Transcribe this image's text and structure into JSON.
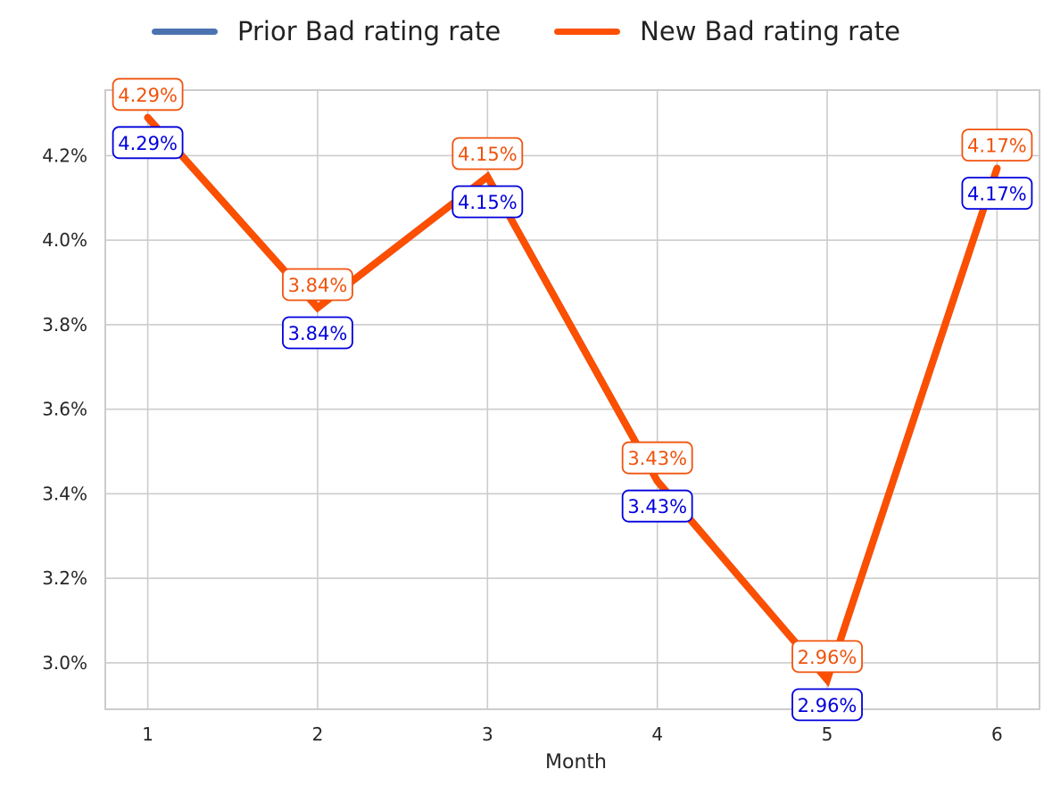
{
  "chart_data": {
    "type": "line",
    "xlabel": "Month",
    "ylabel": "",
    "x": [
      1,
      2,
      3,
      4,
      5,
      6
    ],
    "ylim": [
      2.89,
      4.355
    ],
    "xlim": [
      0.75,
      6.25
    ],
    "yticks": [
      3.0,
      3.2,
      3.4,
      3.6,
      3.8,
      4.0,
      4.2
    ],
    "ytick_labels": [
      "3.0%",
      "3.2%",
      "3.4%",
      "3.6%",
      "3.8%",
      "4.0%",
      "4.2%"
    ],
    "xtick_labels": [
      "1",
      "2",
      "3",
      "4",
      "5",
      "6"
    ],
    "grid": true,
    "legend_placement": "top-center, outside",
    "series": [
      {
        "name": "Prior Bad rating rate",
        "color": "#4c72b0",
        "label_color": "#0000dd",
        "values": [
          4.29,
          3.84,
          4.15,
          3.43,
          2.96,
          4.17
        ],
        "labels": [
          "4.29%",
          "3.84%",
          "4.15%",
          "3.43%",
          "2.96%",
          "4.17%"
        ]
      },
      {
        "name": "New Bad rating rate",
        "color": "#fc4f00",
        "label_color": "#f0530e",
        "values": [
          4.29,
          3.84,
          4.15,
          3.43,
          2.96,
          4.17
        ],
        "labels": [
          "4.29%",
          "3.84%",
          "4.15%",
          "3.43%",
          "2.96%",
          "4.17%"
        ]
      }
    ]
  }
}
